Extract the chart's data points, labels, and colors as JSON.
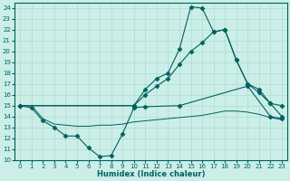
{
  "xlabel": "Humidex (Indice chaleur)",
  "xlim": [
    -0.5,
    23.5
  ],
  "ylim": [
    10,
    24.5
  ],
  "yticks": [
    10,
    11,
    12,
    13,
    14,
    15,
    16,
    17,
    18,
    19,
    20,
    21,
    22,
    23,
    24
  ],
  "xticks": [
    0,
    1,
    2,
    3,
    4,
    5,
    6,
    7,
    8,
    9,
    10,
    11,
    12,
    13,
    14,
    15,
    16,
    17,
    18,
    19,
    20,
    21,
    22,
    23
  ],
  "background_color": "#cceee8",
  "grid_color": "#aaddcc",
  "line_color": "#006060",
  "lines": [
    {
      "x": [
        0,
        1,
        2,
        3,
        4,
        5,
        6,
        7,
        8,
        9,
        10,
        11,
        14,
        20,
        22,
        23
      ],
      "y": [
        15,
        14.8,
        13.6,
        13.0,
        12.2,
        12.2,
        11.1,
        10.3,
        10.4,
        12.4,
        14.8,
        14.9,
        15.0,
        16.8,
        14.0,
        13.8
      ],
      "marker": "D",
      "markersize": 2.5,
      "linewidth": 0.8
    },
    {
      "x": [
        0,
        1,
        2,
        3,
        4,
        5,
        6,
        7,
        8,
        9,
        10,
        11,
        12,
        13,
        14,
        15,
        16,
        17,
        18,
        19,
        20,
        21,
        22,
        23
      ],
      "y": [
        15.0,
        15.0,
        13.8,
        13.3,
        13.2,
        13.1,
        13.1,
        13.2,
        13.2,
        13.3,
        13.5,
        13.6,
        13.7,
        13.8,
        13.9,
        14.0,
        14.1,
        14.3,
        14.5,
        14.5,
        14.4,
        14.2,
        13.9,
        13.7
      ],
      "marker": null,
      "markersize": 0,
      "linewidth": 0.7
    },
    {
      "x": [
        0,
        10,
        11,
        12,
        13,
        14,
        15,
        16,
        17,
        18,
        19,
        20,
        21,
        22,
        23
      ],
      "y": [
        15.0,
        15.0,
        16.5,
        17.5,
        18.0,
        20.2,
        24.1,
        24.0,
        21.8,
        22.0,
        19.2,
        17.0,
        16.2,
        15.2,
        15.0
      ],
      "marker": "D",
      "markersize": 2.5,
      "linewidth": 0.8
    },
    {
      "x": [
        0,
        10,
        11,
        12,
        13,
        14,
        15,
        16,
        17,
        18,
        19,
        20,
        21,
        22,
        23
      ],
      "y": [
        15.0,
        15.0,
        16.0,
        16.8,
        17.5,
        18.8,
        20.0,
        20.8,
        21.8,
        22.0,
        19.2,
        17.0,
        16.5,
        15.2,
        14.0
      ],
      "marker": "D",
      "markersize": 2.5,
      "linewidth": 0.8
    }
  ]
}
